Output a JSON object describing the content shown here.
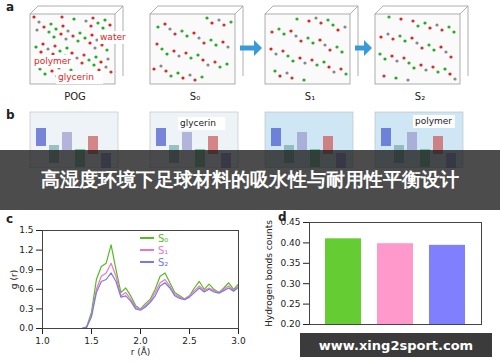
{
  "banner": "高湿度环境下足球材料的吸水性与耐用性平衡设计",
  "watermark": "www.xing2sport.com",
  "panel_a": {
    "label": "a",
    "boxes": [
      "POG",
      "S₀",
      "S₁",
      "S₂"
    ],
    "annotations": [
      "water",
      "polymer",
      "glycerin"
    ]
  },
  "panel_b": {
    "label": "b",
    "annotations": [
      "glycerin",
      "polymer"
    ]
  },
  "chart_data": [
    {
      "panel": "c",
      "type": "line",
      "x_label": "r (Å)",
      "y_label": "g (r)",
      "x": [
        1.4,
        1.45,
        1.5,
        1.55,
        1.6,
        1.65,
        1.7,
        1.75,
        1.8,
        1.85,
        1.9,
        1.95,
        2.0,
        2.05,
        2.1,
        2.15,
        2.2,
        2.25,
        2.3,
        2.35,
        2.4,
        2.45,
        2.5,
        2.55,
        2.6,
        2.65,
        2.7,
        2.75,
        2.8,
        2.85,
        2.9,
        2.95,
        3.0
      ],
      "series": [
        {
          "name": "S₀",
          "color": "#55bb22",
          "values": [
            0,
            0.02,
            0.25,
            0.75,
            0.95,
            1.0,
            1.28,
            0.9,
            0.55,
            0.62,
            0.5,
            0.35,
            0.3,
            0.38,
            0.45,
            0.6,
            0.8,
            0.85,
            0.7,
            0.55,
            0.5,
            0.45,
            0.5,
            0.62,
            0.72,
            0.6,
            0.68,
            0.6,
            0.55,
            0.62,
            0.7,
            0.6,
            0.68
          ]
        },
        {
          "name": "S₁",
          "color": "#ee77bb",
          "values": [
            0,
            0.02,
            0.2,
            0.6,
            0.8,
            0.85,
            1.0,
            0.8,
            0.5,
            0.55,
            0.45,
            0.32,
            0.3,
            0.35,
            0.42,
            0.55,
            0.7,
            0.75,
            0.65,
            0.52,
            0.48,
            0.45,
            0.5,
            0.58,
            0.65,
            0.58,
            0.62,
            0.58,
            0.55,
            0.6,
            0.65,
            0.58,
            0.65
          ]
        },
        {
          "name": "S₂",
          "color": "#7777ee",
          "values": [
            0,
            0.02,
            0.18,
            0.55,
            0.72,
            0.75,
            0.85,
            0.72,
            0.48,
            0.5,
            0.42,
            0.3,
            0.28,
            0.33,
            0.4,
            0.5,
            0.65,
            0.7,
            0.62,
            0.5,
            0.46,
            0.44,
            0.48,
            0.55,
            0.62,
            0.56,
            0.6,
            0.56,
            0.54,
            0.58,
            0.62,
            0.57,
            0.63
          ]
        }
      ],
      "xlim": [
        1.0,
        3.0
      ],
      "xticks": [
        {
          "value": 1.0,
          "label": "1.0"
        },
        1.5,
        {
          "value": 2.0,
          "label": "2.0"
        },
        2.5,
        {
          "value": 3.0,
          "label": "3.0"
        }
      ],
      "ylim": [
        0.0,
        1.5
      ],
      "yticks": [
        {
          "value": 0.0,
          "label": "0.0"
        },
        0.3,
        0.6,
        0.9,
        1.2,
        1.5
      ],
      "legend": "top",
      "grid": false
    },
    {
      "panel": "d",
      "type": "bar",
      "y_label": "Hydrogen bonds counts",
      "categories": [
        null,
        null,
        null
      ],
      "values": [
        0.41,
        0.398,
        0.394
      ],
      "colors": [
        "#66cc33",
        "#ff99cc",
        "#8080ff"
      ],
      "ylim": [
        0.2,
        0.45
      ],
      "yticks": [
        {
          "value": 0.2,
          "label": "0.20"
        },
        0.25,
        {
          "value": 0.3,
          "label": "0.30"
        },
        0.35,
        {
          "value": 0.4,
          "label": "0.40"
        },
        0.45
      ],
      "tick_labels": "y",
      "grid": false
    }
  ]
}
